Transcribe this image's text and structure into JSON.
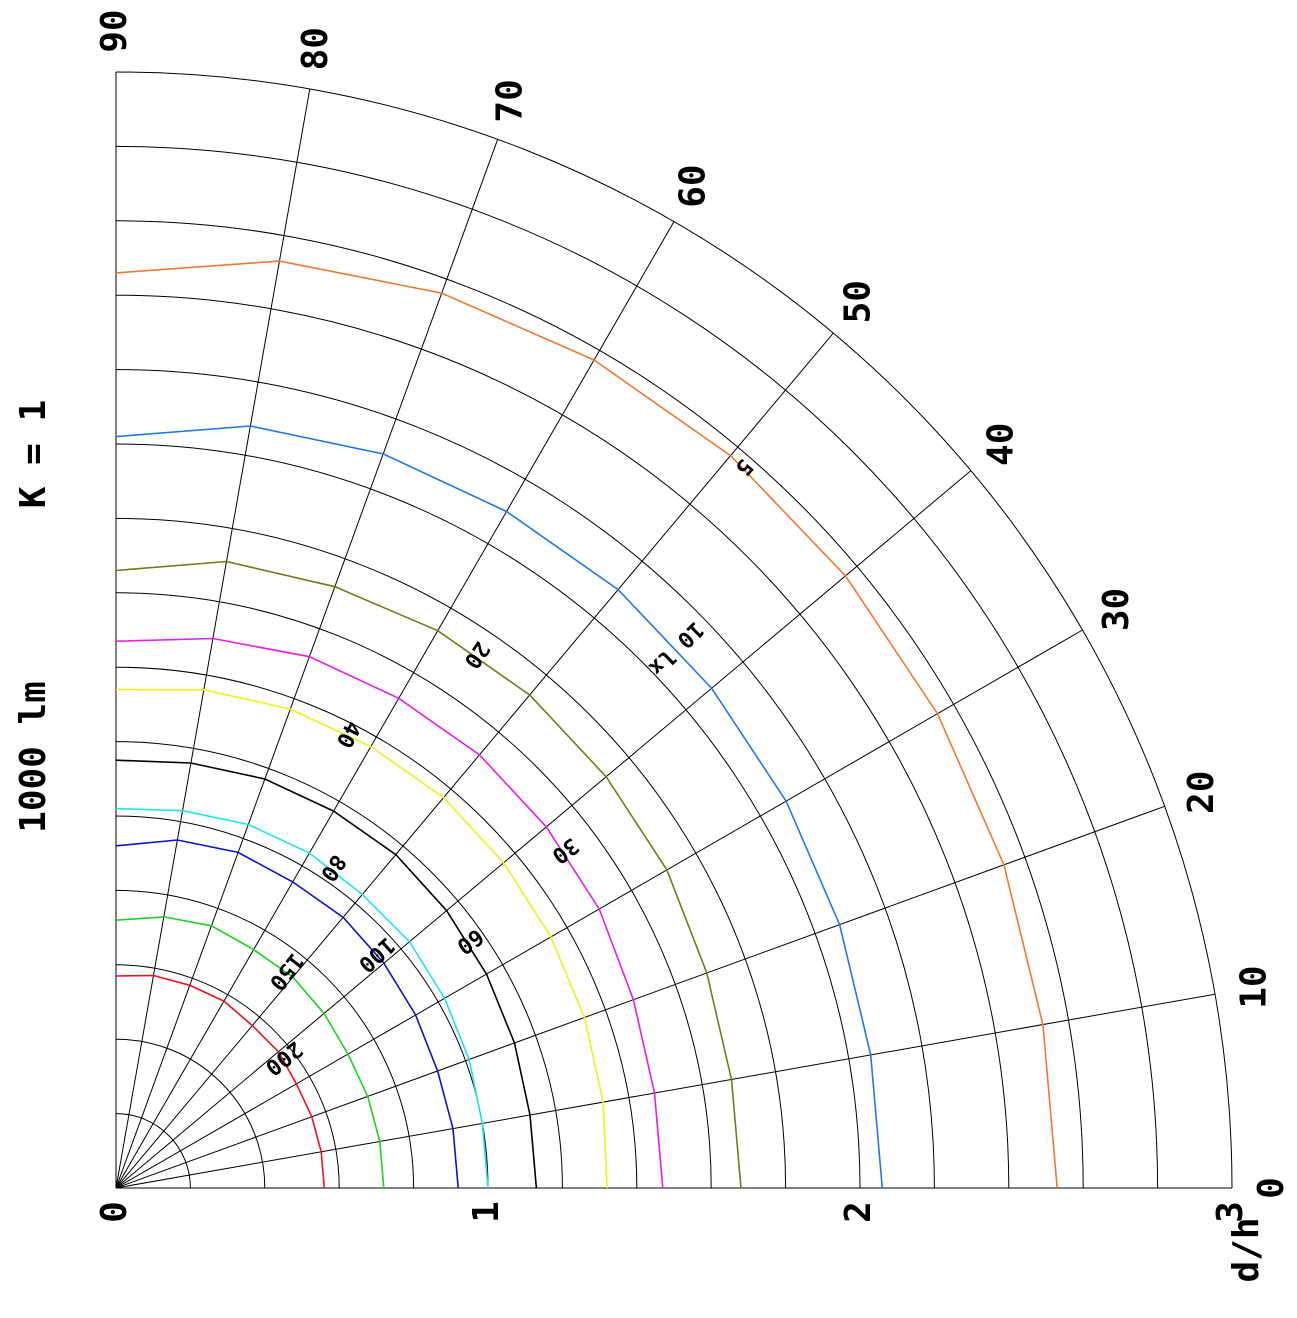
{
  "chart_data": {
    "type": "polar-isolux",
    "header": {
      "flux": "1000 lm",
      "k": "K = 1"
    },
    "axis_x_title": "d/h",
    "radial_ticks": [
      "0",
      "1",
      "2",
      "3"
    ],
    "radial_range": [
      0,
      3
    ],
    "radial_minor_step": 0.2,
    "angle_ticks": [
      "0",
      "10",
      "20",
      "30",
      "40",
      "50",
      "60",
      "70",
      "80",
      "90"
    ],
    "angle_range": [
      0,
      90
    ],
    "grid": true,
    "contours": [
      {
        "label": "200",
        "color": "#e8141e",
        "r": [
          0.56,
          0.56,
          0.56,
          0.56,
          0.57,
          0.57,
          0.58,
          0.58,
          0.58,
          0.57
        ]
      },
      {
        "label": "150",
        "color": "#1ed21e",
        "r": [
          0.72,
          0.72,
          0.72,
          0.72,
          0.73,
          0.74,
          0.74,
          0.75,
          0.74,
          0.72
        ]
      },
      {
        "label": "100",
        "color": "#0a14c8",
        "r": [
          0.92,
          0.92,
          0.92,
          0.93,
          0.94,
          0.95,
          0.95,
          0.96,
          0.95,
          0.92
        ]
      },
      {
        "label": "80",
        "color": "#1ee6e6",
        "r": [
          1.0,
          1.0,
          1.01,
          1.02,
          1.03,
          1.03,
          1.04,
          1.04,
          1.03,
          1.02
        ]
      },
      {
        "label": "60",
        "color": "#000000",
        "r": [
          1.13,
          1.13,
          1.14,
          1.15,
          1.16,
          1.17,
          1.17,
          1.17,
          1.16,
          1.15
        ]
      },
      {
        "label": "40",
        "color": "#f0f01e",
        "r": [
          1.32,
          1.33,
          1.34,
          1.35,
          1.36,
          1.37,
          1.37,
          1.37,
          1.36,
          1.34
        ]
      },
      {
        "label": "30",
        "color": "#e61ee6",
        "r": [
          1.47,
          1.47,
          1.48,
          1.5,
          1.51,
          1.52,
          1.52,
          1.52,
          1.5,
          1.47
        ]
      },
      {
        "label": "20",
        "color": "#787814",
        "r": [
          1.68,
          1.68,
          1.69,
          1.71,
          1.72,
          1.73,
          1.73,
          1.72,
          1.71,
          1.66
        ]
      },
      {
        "label": "10 lx",
        "color": "#1e78e6",
        "r": [
          2.06,
          2.06,
          2.07,
          2.08,
          2.09,
          2.1,
          2.1,
          2.1,
          2.08,
          2.02
        ]
      },
      {
        "label": "5",
        "color": "#f07832",
        "r": [
          2.53,
          2.53,
          2.54,
          2.55,
          2.56,
          2.57,
          2.57,
          2.56,
          2.53,
          2.46
        ]
      }
    ]
  }
}
